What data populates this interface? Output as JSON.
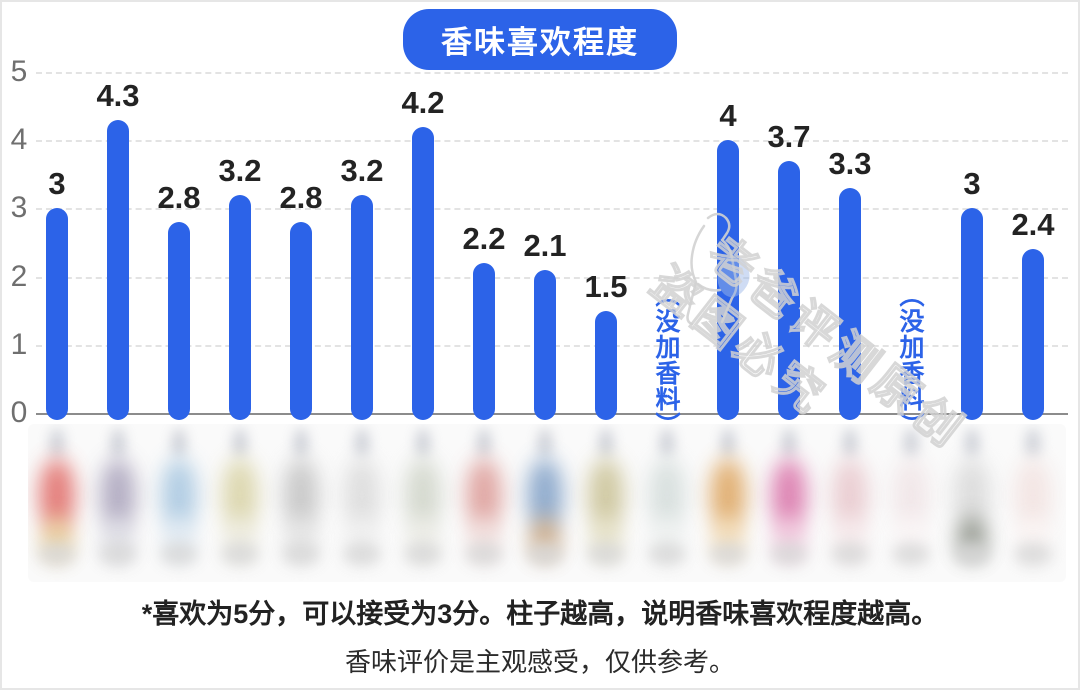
{
  "title": "香味喜欢程度",
  "colors": {
    "brand_blue": "#2c63e8",
    "value_label": "#232323",
    "axis_label": "#6f6f6f",
    "gridline": "#e3e3e3",
    "zero_line": "#8c8c8c",
    "watermark": "#d2d2d2"
  },
  "chart_data": {
    "type": "bar",
    "title": "香味喜欢程度",
    "ylabel": "",
    "xlabel": "",
    "ylim": [
      0,
      5
    ],
    "yticks": [
      0,
      1,
      2,
      3,
      4,
      5
    ],
    "grid": "horizontal dashed",
    "legend": "none",
    "x_axis_labels": "blurred product bottle photos (17 items, no text)",
    "values": [
      3,
      4.3,
      2.8,
      3.2,
      2.8,
      3.2,
      4.2,
      2.2,
      2.1,
      1.5,
      null,
      4,
      3.7,
      3.3,
      null,
      3,
      2.4
    ],
    "null_value_label": "（没加香料）",
    "bar_color": "#2c63e8"
  },
  "watermark": {
    "line1": "老爸评测原创",
    "line2": "盗图必究",
    "figure": "person-silhouette-outline"
  },
  "footnotes": {
    "line1": "*喜欢为5分，可以接受为3分。柱子越高，说明香味喜欢程度越高。",
    "line2": "香味评价是主观感受，仅供参考。"
  },
  "product_strip": {
    "bottles": [
      {
        "body": "#e06a66",
        "accent": "#e6c98f"
      },
      {
        "body": "#a9a2bb",
        "accent": "#dcdce4"
      },
      {
        "body": "#a6c6e0",
        "accent": "#dfe9f2"
      },
      {
        "body": "#d8d2a4",
        "accent": "#eceadc"
      },
      {
        "body": "#c2c2c2",
        "accent": "#e3e3e3"
      },
      {
        "body": "#dadada",
        "accent": "#efefef"
      },
      {
        "body": "#cfd4c8",
        "accent": "#ebebe4"
      },
      {
        "body": "#dc9a96",
        "accent": "#f0dcda"
      },
      {
        "body": "#7f9fc6",
        "accent": "#caa57e"
      },
      {
        "body": "#c9c194",
        "accent": "#e4dfc2"
      },
      {
        "body": "#d3dcda",
        "accent": "#eef1f0"
      },
      {
        "body": "#dda45e",
        "accent": "#f2d9b0"
      },
      {
        "body": "#d972a8",
        "accent": "#f0c3da"
      },
      {
        "body": "#e8c7cc",
        "accent": "#f6e8ea"
      },
      {
        "body": "#f0e4e6",
        "accent": "#fbf5f6"
      },
      {
        "body": "#d8d8d8",
        "accent": "#8a8f85"
      },
      {
        "body": "#f2e2e0",
        "accent": "#fbf4f3"
      }
    ]
  }
}
